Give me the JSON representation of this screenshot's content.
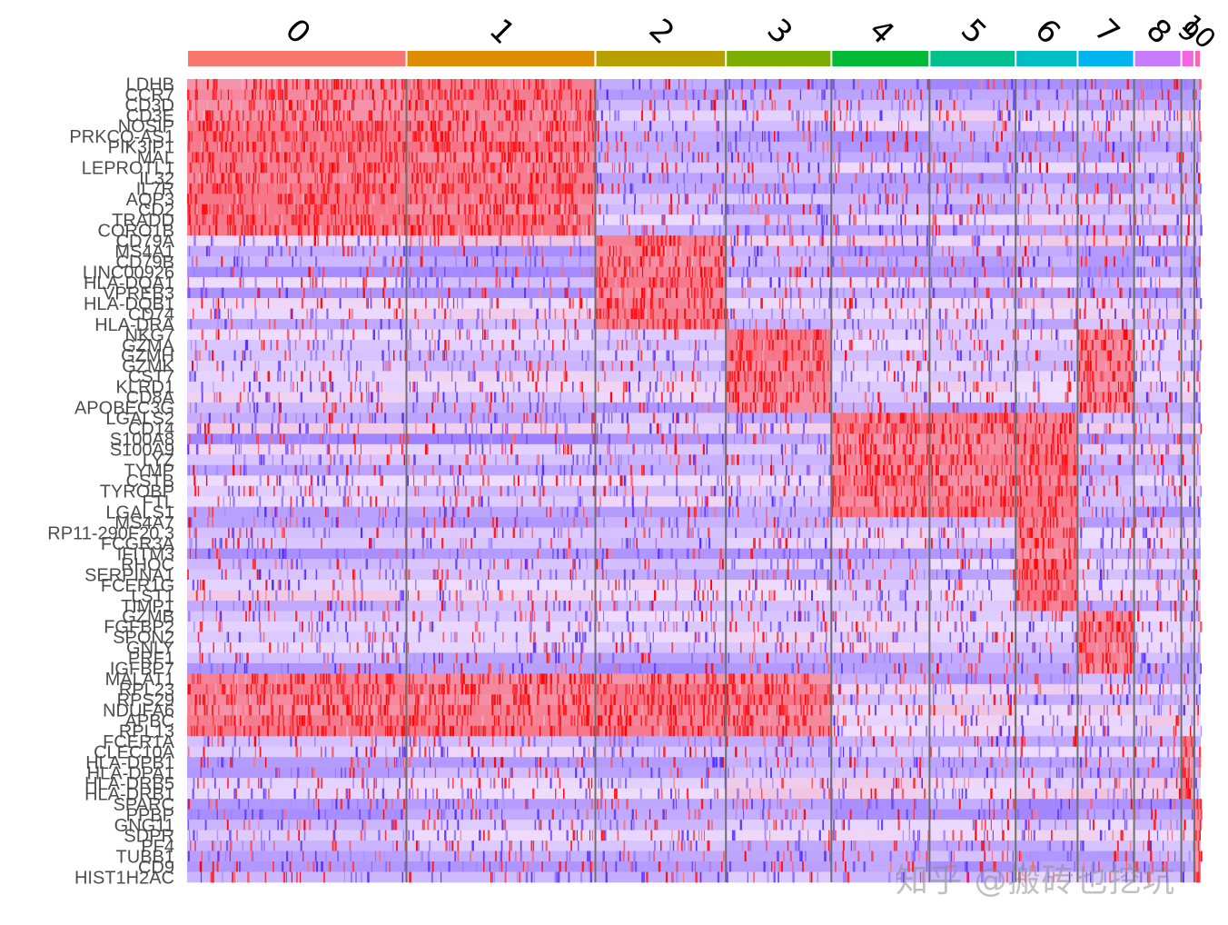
{
  "chart_data": {
    "type": "heatmap",
    "title": "",
    "clusters": [
      {
        "label": "0",
        "size": 237,
        "color": "#F8766D"
      },
      {
        "label": "1",
        "size": 204,
        "color": "#DE8C00"
      },
      {
        "label": "2",
        "size": 141,
        "color": "#B79F00"
      },
      {
        "label": "3",
        "size": 114,
        "color": "#7CAE00"
      },
      {
        "label": "4",
        "size": 106,
        "color": "#00BA38"
      },
      {
        "label": "5",
        "size": 93,
        "color": "#00C08B"
      },
      {
        "label": "6",
        "size": 67,
        "color": "#00BFC4"
      },
      {
        "label": "7",
        "size": 61,
        "color": "#00B4F0"
      },
      {
        "label": "8",
        "size": 51,
        "color": "#C77CFF"
      },
      {
        "label": "9",
        "size": 14,
        "color": "#F564E3"
      },
      {
        "label": "10",
        "size": 7,
        "color": "#FF64B0"
      }
    ],
    "genes": [
      "LDHB",
      "CCR7",
      "CD3D",
      "CD3E",
      "NOSIP",
      "PRKCQ-AS1",
      "PIK3IP1",
      "MAL",
      "LEPROTL1",
      "IL32",
      "IL7R",
      "AQP3",
      "CD2",
      "TRADD",
      "CORO1B",
      "CD79A",
      "MS4A1",
      "CD79B",
      "LINC00926",
      "HLA-DQA1",
      "VPREB3",
      "HLA-DQB1",
      "CD74",
      "HLA-DRA",
      "NKG7",
      "GZMA",
      "GZMH",
      "GZMK",
      "CST7",
      "KLRD1",
      "CD8A",
      "APOBEC3G",
      "LGALS2",
      "CD14",
      "S100A8",
      "S100A9",
      "LYZ",
      "TYMP",
      "CSTB",
      "TYROBP",
      "FTL",
      "LGALS1",
      "MS4A7",
      "RP11-290F20.3",
      "FCGR3A",
      "IFITM3",
      "RHOC",
      "SERPINA1",
      "FCER1G",
      "LST1",
      "TIMP1",
      "GZMB",
      "FGFBP2",
      "SPON2",
      "GNLY",
      "PRF1",
      "IGFBP7",
      "MALAT1",
      "RPL23",
      "RPS29",
      "NDUFA6",
      "APBC",
      "RPL13",
      "FCER1A",
      "CLEC10A",
      "HLA-DPB1",
      "HLA-DPA1",
      "HLA-DRB5",
      "HLA-DRB1",
      "SPARC",
      "PPBP",
      "GNG11",
      "SDPR",
      "PF4",
      "TUBB1",
      "CD9",
      "HIST1H2AC"
    ],
    "block_structure": [
      {
        "genes_from": "LDHB",
        "genes_to": "CORO1B",
        "high_in": [
          "0",
          "1"
        ]
      },
      {
        "genes_from": "CD79A",
        "genes_to": "HLA-DRA",
        "high_in": [
          "2"
        ]
      },
      {
        "genes_from": "NKG7",
        "genes_to": "APOBEC3G",
        "high_in": [
          "3",
          "7"
        ]
      },
      {
        "genes_from": "LGALS2",
        "genes_to": "LGALS1",
        "high_in": [
          "4",
          "5",
          "6"
        ]
      },
      {
        "genes_from": "MS4A7",
        "genes_to": "TIMP1",
        "high_in": [
          "6"
        ]
      },
      {
        "genes_from": "GZMB",
        "genes_to": "IGFBP7",
        "high_in": [
          "7"
        ]
      },
      {
        "genes_from": "MALAT1",
        "genes_to": "RPL13",
        "high_in": [
          "0",
          "1",
          "2",
          "3"
        ]
      },
      {
        "genes_from": "FCER1A",
        "genes_to": "HLA-DRB1",
        "high_in": [
          "9"
        ]
      },
      {
        "genes_from": "SPARC",
        "genes_to": "HIST1H2AC",
        "high_in": [
          "10"
        ]
      }
    ],
    "color_scale": {
      "low": "#2b00ff",
      "mid": "#eeddff",
      "high": "#ff0000"
    },
    "xlabel": "",
    "ylabel": "",
    "legend": "none"
  },
  "watermark": "知乎 @搬砖也挖坑"
}
